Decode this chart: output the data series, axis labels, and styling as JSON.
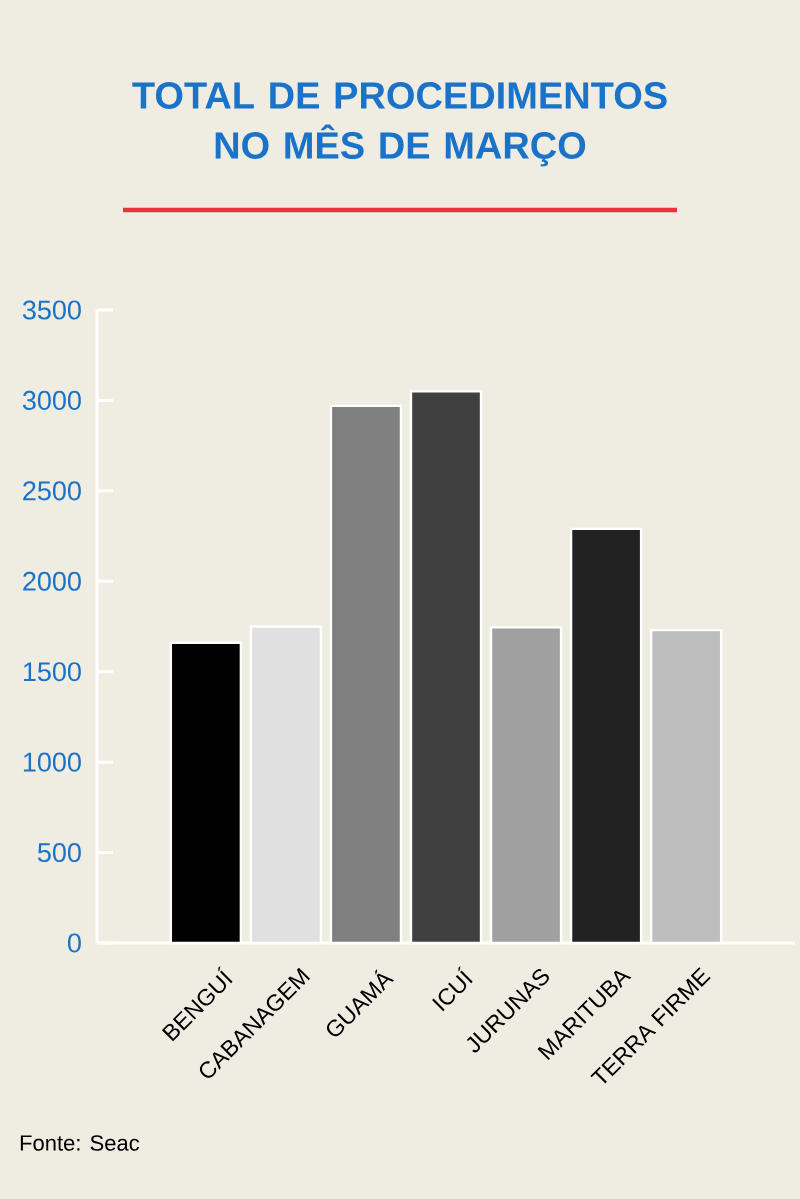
{
  "chart_data": {
    "type": "bar",
    "title": "TOTAL DE PROCEDIMENTOS NO MÊS DE MARÇO",
    "categories": [
      "BENGUÍ",
      "CABANAGEM",
      "GUAMÁ",
      "ICUÍ",
      "JURUNAS",
      "MARITUBA",
      "TERRA FIRME"
    ],
    "values": [
      1660,
      1750,
      2970,
      3050,
      1745,
      2290,
      1730
    ],
    "colors": [
      "#000000",
      "#e0e0e0",
      "#808080",
      "#404040",
      "#a0a0a0",
      "#222222",
      "#bebebe"
    ],
    "ylim": [
      0,
      3500
    ],
    "yticks": [
      0,
      500,
      1000,
      1500,
      2000,
      2500,
      3000,
      3500
    ],
    "annotations": [
      "Fonte: Seac"
    ]
  }
}
